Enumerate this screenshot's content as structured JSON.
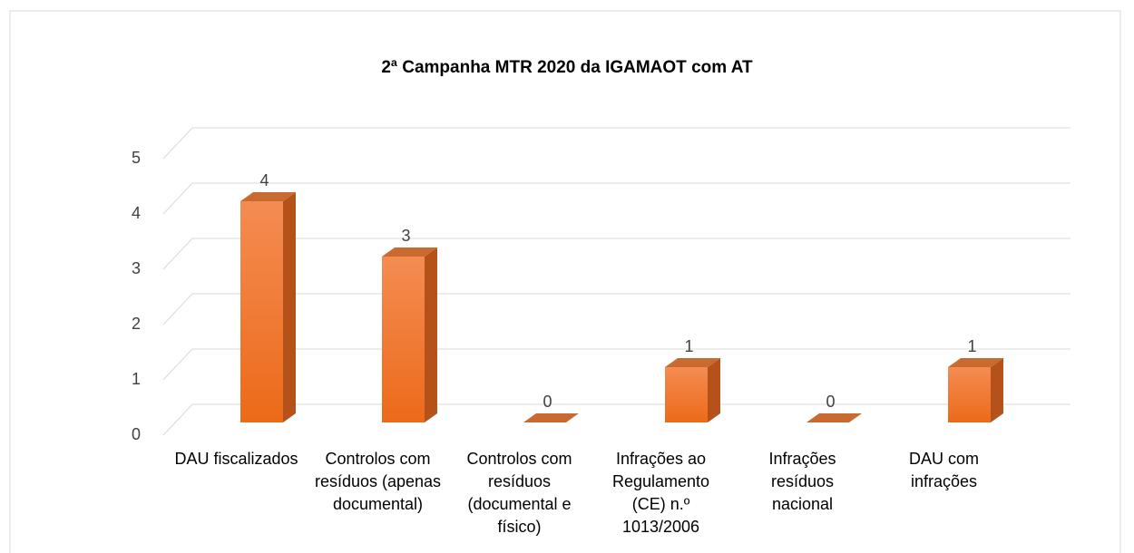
{
  "chart_data": {
    "type": "bar3d",
    "title": "2ª Campanha MTR 2020 da IGAMAOT com AT",
    "categories": [
      "DAU fiscalizados",
      "Controlos com resíduos (apenas documental)",
      "Controlos com resíduos (documental e físico)",
      "Infrações ao Regulamento (CE) n.º 1013/2006",
      "Infrações resíduos nacional",
      "DAU com infrações"
    ],
    "values": [
      4,
      3,
      0,
      1,
      0,
      1
    ],
    "color": "#ee7424",
    "ylim": [
      0,
      5
    ],
    "yticks": [
      0,
      1,
      2,
      3,
      4,
      5
    ],
    "grid": true
  }
}
